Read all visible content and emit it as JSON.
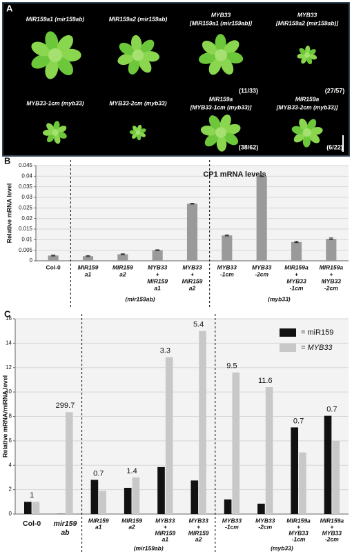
{
  "panel_a": {
    "letter": "A",
    "plants": [
      {
        "label": [
          "MIR159a1 (mir159ab)"
        ]
      },
      {
        "label": [
          "MIR159a2 (mir159ab)"
        ]
      },
      {
        "label": [
          "MYB33",
          "[MIR159a1 (mir159ab)]"
        ],
        "ratio": "(11/33)"
      },
      {
        "label": [
          "MYB33",
          "[MIR159a2 (mir159ab)]"
        ],
        "ratio": "(27/57)"
      },
      {
        "label": [
          "MYB33-1cm (myb33)"
        ]
      },
      {
        "label": [
          "MYB33-2cm (myb33)"
        ]
      },
      {
        "label": [
          "MIR159a",
          "[MYB33-1cm (myb33)]"
        ],
        "ratio": "(38/62)"
      },
      {
        "label": [
          "MIR159a",
          "[MYB33-2cm (myb33)]"
        ],
        "ratio": "(6/22)"
      }
    ]
  },
  "chart_data": [
    {
      "type": "bar",
      "letter": "B",
      "title": "CP1 mRNA levels",
      "ylabel": "Relative mRNA level",
      "categories": [
        [
          "Col-0"
        ],
        [
          "MIR159",
          "a1"
        ],
        [
          "MIR159",
          "a2"
        ],
        [
          "MYB33",
          "+",
          "MIR159",
          "a1"
        ],
        [
          "MYB33",
          "+",
          "MIR159",
          "a2"
        ],
        [
          "MYB33",
          "-1cm"
        ],
        [
          "MYB33",
          "-2cm"
        ],
        [
          "MIR159a",
          "+",
          "MYB33",
          "-1cm"
        ],
        [
          "MIR159a",
          "+",
          "MYB33",
          "-2cm"
        ]
      ],
      "values": [
        0.0025,
        0.0022,
        0.0031,
        0.005,
        0.027,
        0.012,
        0.04,
        0.0089,
        0.0104
      ],
      "errors": [
        0.0002,
        0.0002,
        0.0002,
        0.0002,
        0.0002,
        0.0002,
        0.0002,
        0.0003,
        0.0004
      ],
      "color": "#9a9a9a",
      "group_labels": [
        "(mir159ab)",
        "(myb33)"
      ],
      "ylim": [
        0,
        0.045
      ],
      "yticks": [
        0,
        0.005,
        0.01,
        0.015,
        0.02,
        0.025,
        0.03,
        0.035,
        0.04,
        0.045
      ],
      "grid": true
    },
    {
      "type": "grouped_bar",
      "letter": "C",
      "ylabel": "Relative mRNA/miRNA level",
      "categories": [
        [
          "Col-0"
        ],
        [
          "mir159",
          "ab"
        ],
        [
          "MIR159",
          "a1"
        ],
        [
          "MIR159",
          "a2"
        ],
        [
          "MYB33",
          "+",
          "MIR159",
          "a1"
        ],
        [
          "MYB33",
          "+",
          "MIR159",
          "a2"
        ],
        [
          "MYB33",
          "-1cm"
        ],
        [
          "MYB33",
          "-2cm"
        ],
        [
          "MIR159a",
          "+",
          "MYB33",
          "-1cm"
        ],
        [
          "MIR159a",
          "+",
          "MYB33",
          "-2cm"
        ]
      ],
      "series": [
        {
          "name": "= miR159",
          "color": "#111111",
          "values": [
            1.0,
            0.02,
            2.8,
            2.15,
            3.85,
            2.75,
            1.2,
            0.85,
            7.1,
            8.05
          ]
        },
        {
          "name": "= MYB33",
          "color": "#c8c8c8",
          "values": [
            1.0,
            8.35,
            1.9,
            3.0,
            12.85,
            15.0,
            11.6,
            10.4,
            5.05,
            6.0
          ]
        }
      ],
      "ratio_labels": [
        "1",
        "299.7",
        "0.7",
        "1.4",
        "3.3",
        "5.4",
        "9.5",
        "11.6",
        "0.7",
        "0.7"
      ],
      "group_labels": [
        "(mir159ab)",
        "(myb33)"
      ],
      "ylim": [
        0,
        16
      ],
      "yticks": [
        0,
        2,
        4,
        6,
        8,
        10,
        12,
        14,
        16
      ],
      "grid": true,
      "legend": "upper right"
    }
  ]
}
